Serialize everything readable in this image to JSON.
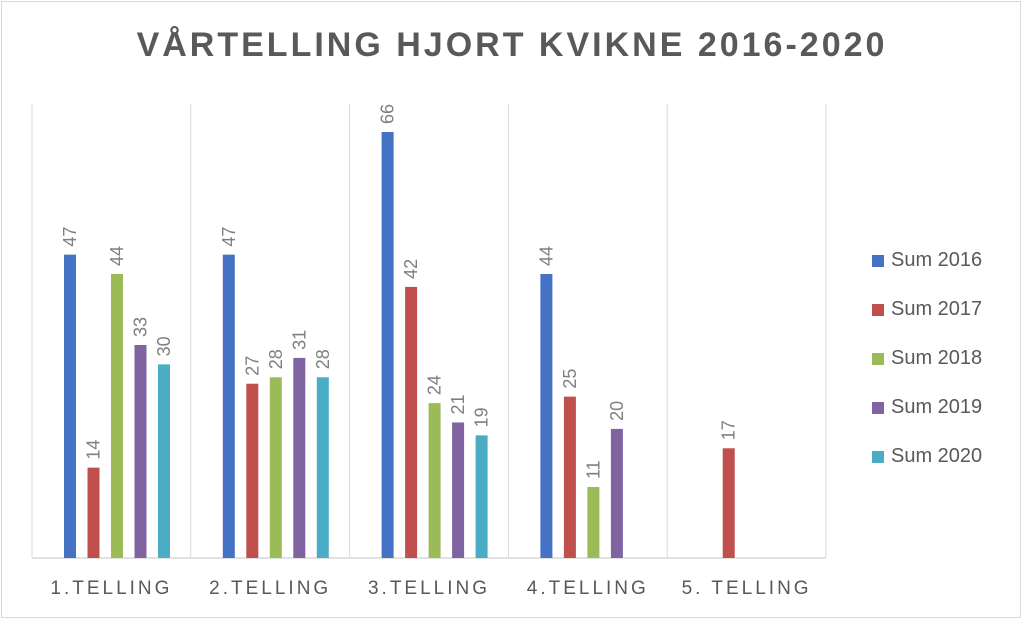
{
  "chart_data": {
    "type": "bar",
    "title": "VÅRTELLING HJORT KVIKNE 2016-2020",
    "categories": [
      "1.TELLING",
      "2.TELLING",
      "3.TELLING",
      "4.TELLING",
      "5. TELLING"
    ],
    "series": [
      {
        "name": "Sum 2016",
        "color": "#4472c4",
        "values": [
          47,
          47,
          66,
          44,
          null
        ]
      },
      {
        "name": "Sum 2017",
        "color": "#c0504d",
        "values": [
          14,
          27,
          42,
          25,
          17
        ]
      },
      {
        "name": "Sum 2018",
        "color": "#9bbb59",
        "values": [
          44,
          28,
          24,
          11,
          null
        ]
      },
      {
        "name": "Sum 2019",
        "color": "#8064a2",
        "values": [
          33,
          31,
          21,
          20,
          null
        ]
      },
      {
        "name": "Sum 2020",
        "color": "#4bacc6",
        "values": [
          30,
          28,
          19,
          null,
          null
        ]
      }
    ],
    "ylim": [
      0,
      66
    ],
    "grid": "vertical category separators",
    "legend": "right",
    "data_labels": true
  }
}
